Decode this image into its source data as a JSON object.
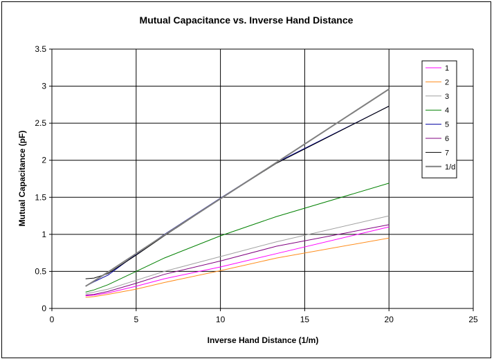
{
  "chart_data": {
    "type": "line",
    "title": "Mutual Capacitance vs. Inverse Hand Distance",
    "xlabel": "Inverse Hand Distance (1/m)",
    "ylabel": "Mutual Capacitance (pF)",
    "xlim": [
      0,
      25
    ],
    "ylim": [
      0,
      3.5
    ],
    "xticks": [
      0,
      5,
      10,
      15,
      20,
      25
    ],
    "yticks": [
      0,
      0.5,
      1,
      1.5,
      2,
      2.5,
      3,
      3.5
    ],
    "xtick_labels": [
      "0",
      "5",
      "10",
      "15",
      "20",
      "25"
    ],
    "ytick_labels": [
      "0",
      "0.5",
      "1",
      "1.5",
      "2",
      "2.5",
      "3",
      "3.5"
    ],
    "grid": true,
    "legend_position": "top-right",
    "x": [
      2,
      2.5,
      3.33,
      5,
      6.67,
      10,
      13.33,
      20
    ],
    "series": [
      {
        "name": "1",
        "color": "#ff00ff",
        "values": [
          0.17,
          0.18,
          0.21,
          0.3,
          0.4,
          0.56,
          0.74,
          1.1
        ]
      },
      {
        "name": "2",
        "color": "#ff8c1a",
        "values": [
          0.15,
          0.16,
          0.19,
          0.26,
          0.35,
          0.51,
          0.68,
          0.95
        ]
      },
      {
        "name": "3",
        "color": "#a0a0a0",
        "values": [
          0.2,
          0.22,
          0.26,
          0.38,
          0.5,
          0.7,
          0.9,
          1.25
        ]
      },
      {
        "name": "4",
        "color": "#008000",
        "values": [
          0.22,
          0.25,
          0.32,
          0.5,
          0.68,
          0.98,
          1.24,
          1.69
        ]
      },
      {
        "name": "5",
        "color": "#0000a0",
        "values": [
          0.3,
          0.36,
          0.45,
          0.73,
          1.0,
          1.49,
          1.97,
          2.73
        ]
      },
      {
        "name": "6",
        "color": "#800080",
        "values": [
          0.18,
          0.19,
          0.23,
          0.34,
          0.46,
          0.64,
          0.84,
          1.13
        ]
      },
      {
        "name": "7",
        "color": "#000000",
        "values": [
          0.4,
          0.41,
          0.47,
          0.72,
          0.98,
          1.48,
          1.96,
          2.73
        ]
      },
      {
        "name": "1/d",
        "color": "#808080",
        "values": [
          0.3,
          0.37,
          0.49,
          0.74,
          0.99,
          1.48,
          1.97,
          2.96
        ]
      }
    ]
  }
}
